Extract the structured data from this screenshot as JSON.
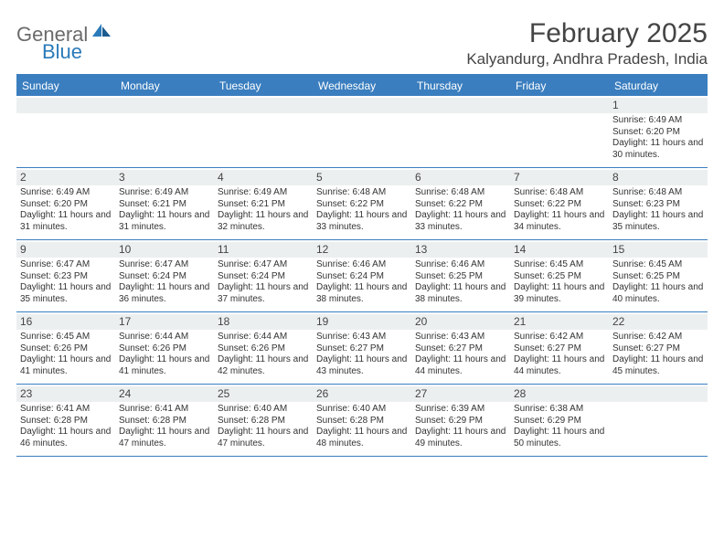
{
  "brand": {
    "text_gray": "General",
    "text_blue": "Blue"
  },
  "title": "February 2025",
  "location": "Kalyandurg, Andhra Pradesh, India",
  "colors": {
    "header_bg": "#3a7ebf",
    "header_text": "#ffffff",
    "number_row_bg": "#eceff0",
    "text": "#333333",
    "logo_gray": "#6b6b6b",
    "logo_blue": "#2a7ab9"
  },
  "day_names": [
    "Sunday",
    "Monday",
    "Tuesday",
    "Wednesday",
    "Thursday",
    "Friday",
    "Saturday"
  ],
  "weeks": [
    [
      {
        "n": "",
        "empty": true
      },
      {
        "n": "",
        "empty": true
      },
      {
        "n": "",
        "empty": true
      },
      {
        "n": "",
        "empty": true
      },
      {
        "n": "",
        "empty": true
      },
      {
        "n": "",
        "empty": true
      },
      {
        "n": "1",
        "sunrise": "Sunrise: 6:49 AM",
        "sunset": "Sunset: 6:20 PM",
        "daylight": "Daylight: 11 hours and 30 minutes."
      }
    ],
    [
      {
        "n": "2",
        "sunrise": "Sunrise: 6:49 AM",
        "sunset": "Sunset: 6:20 PM",
        "daylight": "Daylight: 11 hours and 31 minutes."
      },
      {
        "n": "3",
        "sunrise": "Sunrise: 6:49 AM",
        "sunset": "Sunset: 6:21 PM",
        "daylight": "Daylight: 11 hours and 31 minutes."
      },
      {
        "n": "4",
        "sunrise": "Sunrise: 6:49 AM",
        "sunset": "Sunset: 6:21 PM",
        "daylight": "Daylight: 11 hours and 32 minutes."
      },
      {
        "n": "5",
        "sunrise": "Sunrise: 6:48 AM",
        "sunset": "Sunset: 6:22 PM",
        "daylight": "Daylight: 11 hours and 33 minutes."
      },
      {
        "n": "6",
        "sunrise": "Sunrise: 6:48 AM",
        "sunset": "Sunset: 6:22 PM",
        "daylight": "Daylight: 11 hours and 33 minutes."
      },
      {
        "n": "7",
        "sunrise": "Sunrise: 6:48 AM",
        "sunset": "Sunset: 6:22 PM",
        "daylight": "Daylight: 11 hours and 34 minutes."
      },
      {
        "n": "8",
        "sunrise": "Sunrise: 6:48 AM",
        "sunset": "Sunset: 6:23 PM",
        "daylight": "Daylight: 11 hours and 35 minutes."
      }
    ],
    [
      {
        "n": "9",
        "sunrise": "Sunrise: 6:47 AM",
        "sunset": "Sunset: 6:23 PM",
        "daylight": "Daylight: 11 hours and 35 minutes."
      },
      {
        "n": "10",
        "sunrise": "Sunrise: 6:47 AM",
        "sunset": "Sunset: 6:24 PM",
        "daylight": "Daylight: 11 hours and 36 minutes."
      },
      {
        "n": "11",
        "sunrise": "Sunrise: 6:47 AM",
        "sunset": "Sunset: 6:24 PM",
        "daylight": "Daylight: 11 hours and 37 minutes."
      },
      {
        "n": "12",
        "sunrise": "Sunrise: 6:46 AM",
        "sunset": "Sunset: 6:24 PM",
        "daylight": "Daylight: 11 hours and 38 minutes."
      },
      {
        "n": "13",
        "sunrise": "Sunrise: 6:46 AM",
        "sunset": "Sunset: 6:25 PM",
        "daylight": "Daylight: 11 hours and 38 minutes."
      },
      {
        "n": "14",
        "sunrise": "Sunrise: 6:45 AM",
        "sunset": "Sunset: 6:25 PM",
        "daylight": "Daylight: 11 hours and 39 minutes."
      },
      {
        "n": "15",
        "sunrise": "Sunrise: 6:45 AM",
        "sunset": "Sunset: 6:25 PM",
        "daylight": "Daylight: 11 hours and 40 minutes."
      }
    ],
    [
      {
        "n": "16",
        "sunrise": "Sunrise: 6:45 AM",
        "sunset": "Sunset: 6:26 PM",
        "daylight": "Daylight: 11 hours and 41 minutes."
      },
      {
        "n": "17",
        "sunrise": "Sunrise: 6:44 AM",
        "sunset": "Sunset: 6:26 PM",
        "daylight": "Daylight: 11 hours and 41 minutes."
      },
      {
        "n": "18",
        "sunrise": "Sunrise: 6:44 AM",
        "sunset": "Sunset: 6:26 PM",
        "daylight": "Daylight: 11 hours and 42 minutes."
      },
      {
        "n": "19",
        "sunrise": "Sunrise: 6:43 AM",
        "sunset": "Sunset: 6:27 PM",
        "daylight": "Daylight: 11 hours and 43 minutes."
      },
      {
        "n": "20",
        "sunrise": "Sunrise: 6:43 AM",
        "sunset": "Sunset: 6:27 PM",
        "daylight": "Daylight: 11 hours and 44 minutes."
      },
      {
        "n": "21",
        "sunrise": "Sunrise: 6:42 AM",
        "sunset": "Sunset: 6:27 PM",
        "daylight": "Daylight: 11 hours and 44 minutes."
      },
      {
        "n": "22",
        "sunrise": "Sunrise: 6:42 AM",
        "sunset": "Sunset: 6:27 PM",
        "daylight": "Daylight: 11 hours and 45 minutes."
      }
    ],
    [
      {
        "n": "23",
        "sunrise": "Sunrise: 6:41 AM",
        "sunset": "Sunset: 6:28 PM",
        "daylight": "Daylight: 11 hours and 46 minutes."
      },
      {
        "n": "24",
        "sunrise": "Sunrise: 6:41 AM",
        "sunset": "Sunset: 6:28 PM",
        "daylight": "Daylight: 11 hours and 47 minutes."
      },
      {
        "n": "25",
        "sunrise": "Sunrise: 6:40 AM",
        "sunset": "Sunset: 6:28 PM",
        "daylight": "Daylight: 11 hours and 47 minutes."
      },
      {
        "n": "26",
        "sunrise": "Sunrise: 6:40 AM",
        "sunset": "Sunset: 6:28 PM",
        "daylight": "Daylight: 11 hours and 48 minutes."
      },
      {
        "n": "27",
        "sunrise": "Sunrise: 6:39 AM",
        "sunset": "Sunset: 6:29 PM",
        "daylight": "Daylight: 11 hours and 49 minutes."
      },
      {
        "n": "28",
        "sunrise": "Sunrise: 6:38 AM",
        "sunset": "Sunset: 6:29 PM",
        "daylight": "Daylight: 11 hours and 50 minutes."
      },
      {
        "n": "",
        "empty": true
      }
    ]
  ]
}
